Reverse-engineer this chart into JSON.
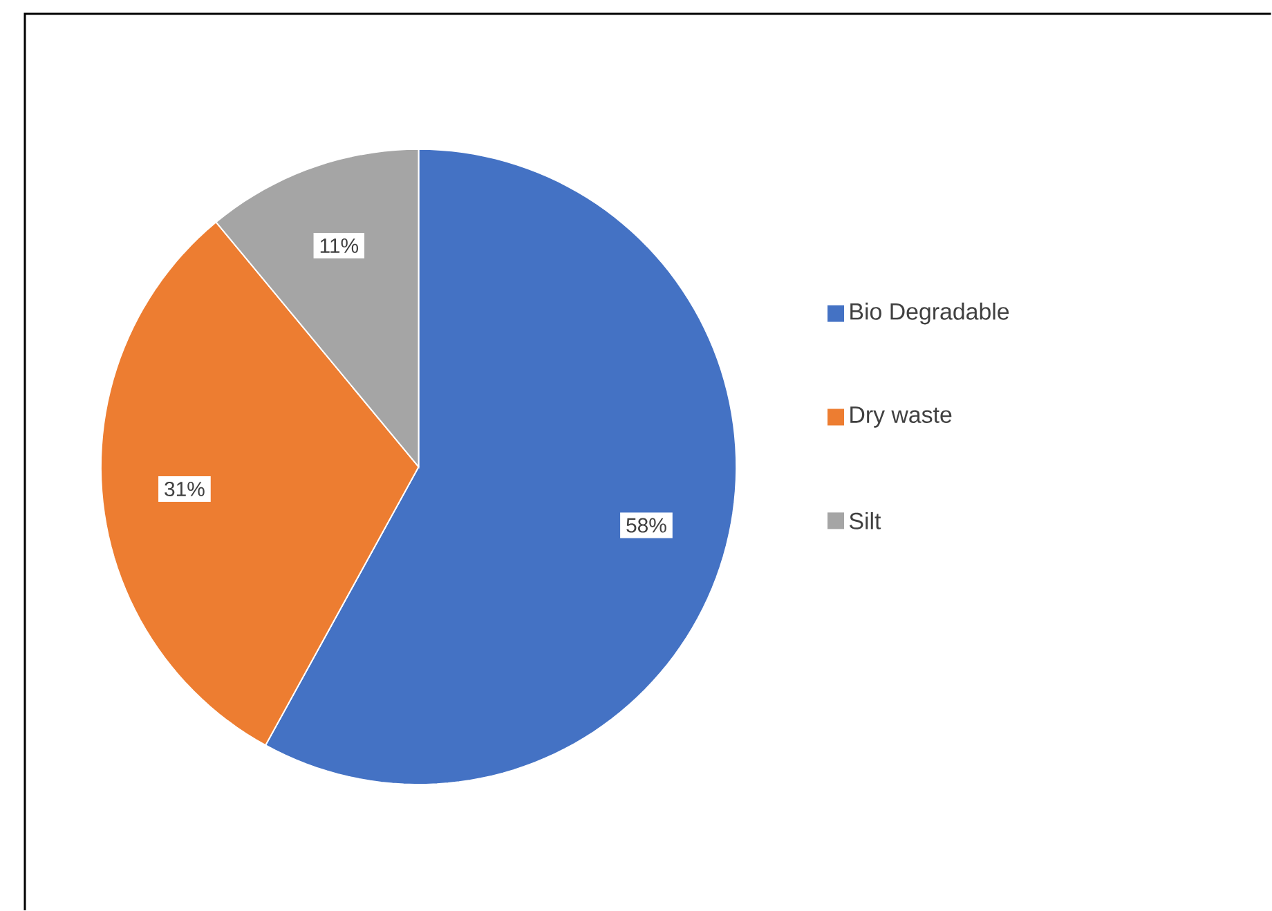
{
  "chart_data": {
    "type": "pie",
    "categories": [
      "Bio Degradable",
      "Dry waste",
      "Silt"
    ],
    "values": [
      58,
      31,
      11
    ],
    "value_labels": [
      "58%",
      "31%",
      "11%"
    ],
    "colors": [
      "#4472c4",
      "#ed7d31",
      "#a5a5a5"
    ],
    "legend": "right"
  }
}
